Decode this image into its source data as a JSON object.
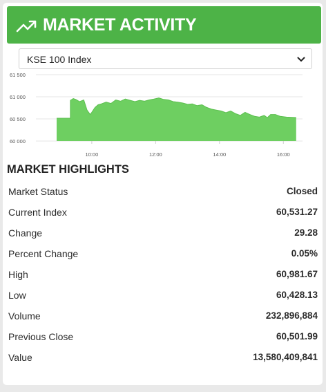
{
  "header": {
    "title": "MARKET ACTIVITY",
    "icon": "trending-up-icon",
    "color": "#4db347"
  },
  "index_select": {
    "selected": "KSE 100 Index",
    "icon": "chevron-down-icon"
  },
  "chart_data": {
    "type": "area",
    "color": "#6ecf61",
    "yticks": [
      "61 500",
      "61 000",
      "60 500",
      "60 000"
    ],
    "ylim": [
      60000,
      61500
    ],
    "xticks": [
      "10:00",
      "12:00",
      "14:00",
      "16:00"
    ],
    "xlim_hours": [
      8.25,
      16.6
    ],
    "x": [
      8.9,
      9.33,
      9.33,
      9.42,
      9.5,
      9.62,
      9.75,
      9.85,
      9.95,
      10.0,
      10.1,
      10.2,
      10.3,
      10.45,
      10.6,
      10.75,
      10.9,
      11.05,
      11.2,
      11.35,
      11.5,
      11.65,
      11.8,
      11.95,
      12.1,
      12.25,
      12.4,
      12.55,
      12.7,
      12.85,
      13.0,
      13.15,
      13.3,
      13.45,
      13.6,
      13.75,
      13.9,
      14.05,
      14.2,
      14.35,
      14.5,
      14.65,
      14.8,
      14.95,
      15.1,
      15.25,
      15.4,
      15.5,
      15.6,
      15.75,
      15.9,
      16.1,
      16.4
    ],
    "values": [
      60515,
      60515,
      60920,
      60960,
      60940,
      60890,
      60930,
      60700,
      60600,
      60650,
      60760,
      60820,
      60840,
      60880,
      60850,
      60930,
      60900,
      60950,
      60920,
      60890,
      60920,
      60900,
      60930,
      60950,
      60975,
      60940,
      60930,
      60890,
      60880,
      60860,
      60830,
      60840,
      60800,
      60820,
      60760,
      60720,
      60700,
      60680,
      60640,
      60680,
      60620,
      60580,
      60650,
      60600,
      60560,
      60540,
      60580,
      60530,
      60600,
      60600,
      60560,
      60540,
      60531
    ]
  },
  "highlights": {
    "title": "MARKET HIGHLIGHTS",
    "rows": [
      {
        "label": "Market Status",
        "value": "Closed"
      },
      {
        "label": "Current Index",
        "value": "60,531.27"
      },
      {
        "label": "Change",
        "value": "29.28"
      },
      {
        "label": "Percent Change",
        "value": "0.05%"
      },
      {
        "label": "High",
        "value": "60,981.67"
      },
      {
        "label": "Low",
        "value": "60,428.13"
      },
      {
        "label": "Volume",
        "value": "232,896,884"
      },
      {
        "label": "Previous Close",
        "value": "60,501.99"
      },
      {
        "label": "Value",
        "value": "13,580,409,841"
      }
    ]
  }
}
